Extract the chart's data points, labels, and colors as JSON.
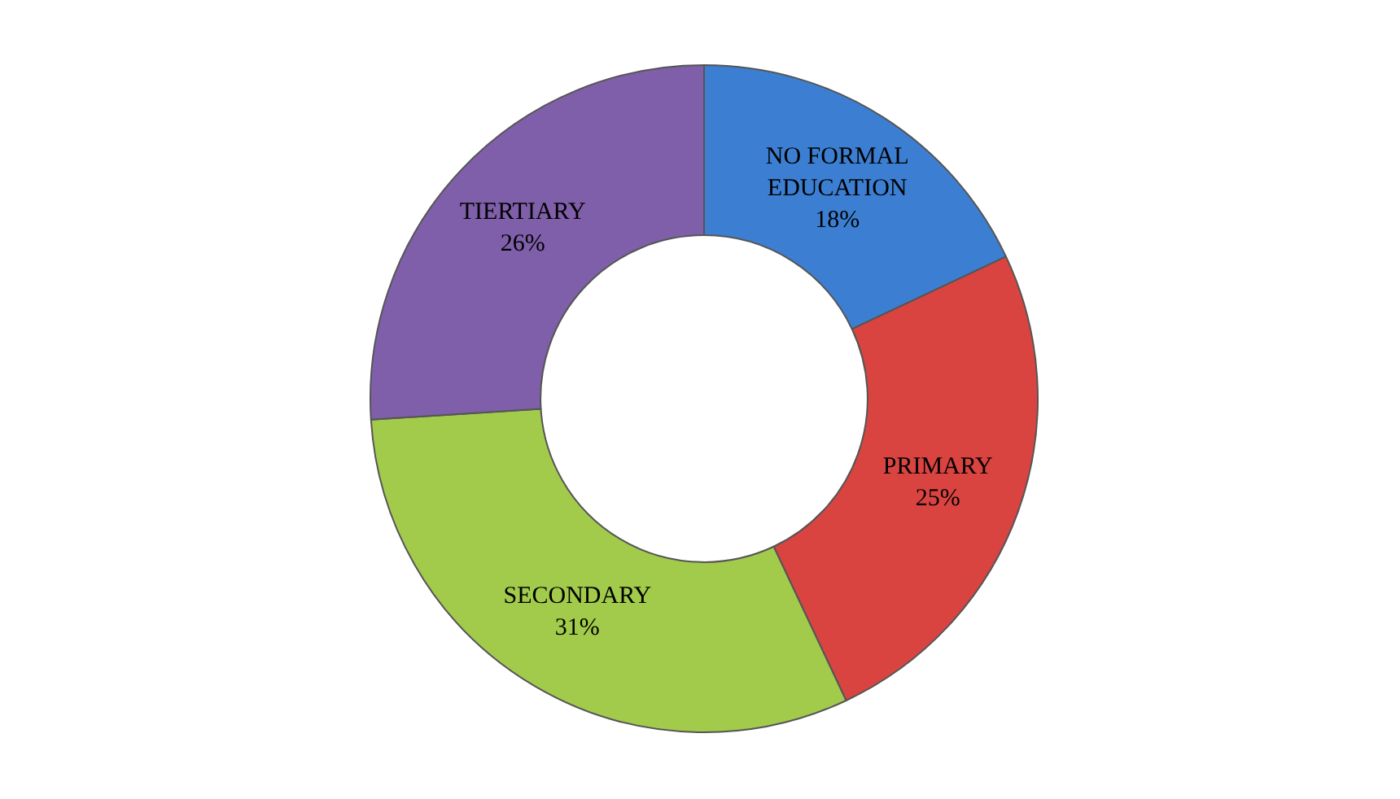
{
  "chart_data": {
    "type": "donut",
    "categories": [
      "NO FORMAL EDUCATION",
      "PRIMARY",
      "SECONDARY",
      "TIERTIARY"
    ],
    "values": [
      18,
      25,
      31,
      26
    ],
    "value_labels": [
      "18%",
      "25%",
      "31%",
      "26%"
    ],
    "colors": [
      "#3c7fd2",
      "#d94441",
      "#a2cb4b",
      "#7f5fa9"
    ],
    "legend": false
  }
}
